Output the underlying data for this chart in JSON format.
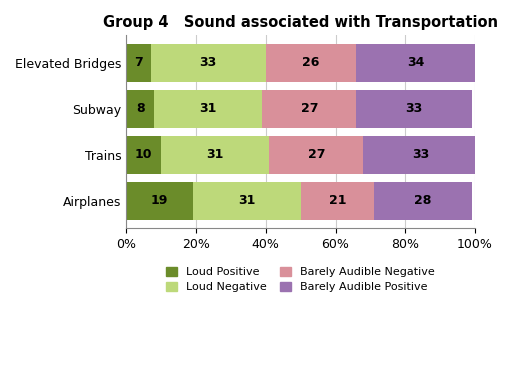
{
  "title": "Group 4   Sound associated with Transportation",
  "categories": [
    "Elevated Bridges",
    "Subway",
    "Trains",
    "Airplanes"
  ],
  "segments": {
    "Loud Positive": [
      7,
      8,
      10,
      19
    ],
    "Loud Negative": [
      33,
      31,
      31,
      31
    ],
    "Barely Audible Negative": [
      26,
      27,
      27,
      21
    ],
    "Barely Audible Positive": [
      34,
      33,
      33,
      28
    ]
  },
  "colors": {
    "Loud Positive": "#6b8c2a",
    "Loud Negative": "#bdd97a",
    "Barely Audible Negative": "#d9909a",
    "Barely Audible Positive": "#9b72b0"
  },
  "xtick_labels": [
    "0%",
    "20%",
    "40%",
    "60%",
    "80%",
    "100%"
  ],
  "xtick_values": [
    0,
    20,
    40,
    60,
    80,
    100
  ],
  "legend_order": [
    "Loud Positive",
    "Loud Negative",
    "Barely Audible Negative",
    "Barely Audible Positive"
  ],
  "bar_height": 0.82,
  "figsize": [
    5.08,
    3.71
  ],
  "dpi": 100,
  "title_fontsize": 10.5,
  "label_fontsize": 9,
  "tick_fontsize": 9,
  "legend_fontsize": 8
}
